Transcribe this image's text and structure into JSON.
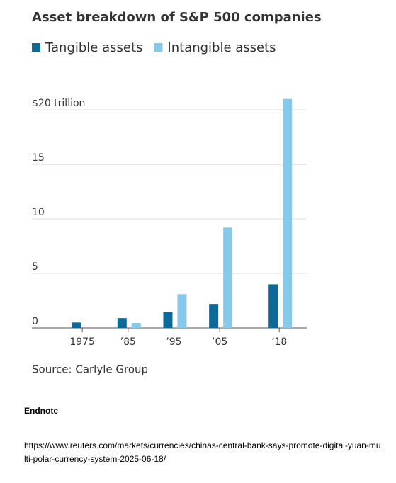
{
  "chart_data": {
    "type": "bar",
    "title": "Asset breakdown of S&P 500 companies",
    "source": "Source: Carlyle Group",
    "x": [
      1975,
      1985,
      1995,
      2005,
      2018
    ],
    "xlim": [
      1964,
      2024
    ],
    "xticks": [
      {
        "value": 1975,
        "label": "1975"
      },
      {
        "value": 1985,
        "label": "’85"
      },
      {
        "value": 1995,
        "label": "’95"
      },
      {
        "value": 2005,
        "label": "’05"
      },
      {
        "value": 2018,
        "label": "’18"
      }
    ],
    "series": [
      {
        "name": "Tangible assets",
        "color": "#0b6a99",
        "values": [
          0.5,
          0.9,
          1.45,
          2.2,
          4.0
        ]
      },
      {
        "name": "Intangible assets",
        "color": "#86c9ea",
        "values": [
          0,
          0.45,
          3.1,
          9.2,
          21.0
        ]
      }
    ],
    "ylim": [
      0,
      21.5
    ],
    "yticks": [
      0,
      5,
      10,
      15,
      {
        "value": 20,
        "label": "$20 trillion"
      }
    ],
    "grid": true
  },
  "endnote": {
    "heading": "Endnote",
    "url": "https://www.reuters.com/markets/currencies/chinas-central-bank-says-promote-digital-yuan-multi-polar-currency-system-2025-06-18/"
  }
}
